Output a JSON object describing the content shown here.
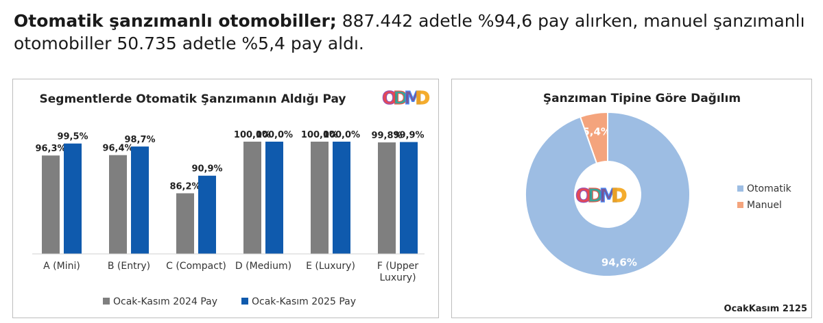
{
  "headline": {
    "bold": "Otomatik şanzımanlı otomobiller;",
    "rest": " 887.442 adetle %94,6 pay alırken, manuel şanzımanlı otomobiller 50.735 adetle %5,4 pay aldı."
  },
  "logo_text": "ODMD",
  "colors": {
    "series_2024": "#7f7f7f",
    "series_2025": "#0f5aad",
    "otomatik": "#9dbde3",
    "manuel": "#f4a47d"
  },
  "chart_data": [
    {
      "type": "bar",
      "title": "Segmentlerde Otomatik Şanzımanın Aldığı Pay",
      "categories": [
        "A (Mini)",
        "B (Entry)",
        "C (Compact)",
        "D (Medium)",
        "E (Luxury)",
        "F (Upper Luxury)"
      ],
      "category_lines": [
        [
          "A (Mini)"
        ],
        [
          "B (Entry)"
        ],
        [
          "C (Compact)"
        ],
        [
          "D (Medium)"
        ],
        [
          "E (Luxury)"
        ],
        [
          "F (Upper",
          "Luxury)"
        ]
      ],
      "series": [
        {
          "name": "Ocak-Kasım 2024 Pay",
          "values": [
            96.3,
            96.4,
            86.2,
            100.0,
            100.0,
            99.8
          ],
          "labels": [
            "96,3%",
            "96,4%",
            "86,2%",
            "100,0%",
            "100,0%",
            "99,8%"
          ]
        },
        {
          "name": "Ocak-Kasım 2025 Pay",
          "values": [
            99.5,
            98.7,
            90.9,
            100.0,
            100.0,
            99.9
          ],
          "labels": [
            "99,5%",
            "98,7%",
            "90,9%",
            "100,0%",
            "100,0%",
            "99,9%"
          ]
        }
      ],
      "ylim": [
        70,
        100
      ],
      "grid": false,
      "legend": "bottom"
    },
    {
      "type": "pie",
      "donut": true,
      "title": "Şanzıman Tipine Göre Dağılım",
      "slices": [
        {
          "name": "Otomatik",
          "value": 94.6,
          "label": "94,6%"
        },
        {
          "name": "Manuel",
          "value": 5.4,
          "label": "5,4%"
        }
      ],
      "legend": "right"
    }
  ],
  "footer_note": "OcakKasım 2125"
}
